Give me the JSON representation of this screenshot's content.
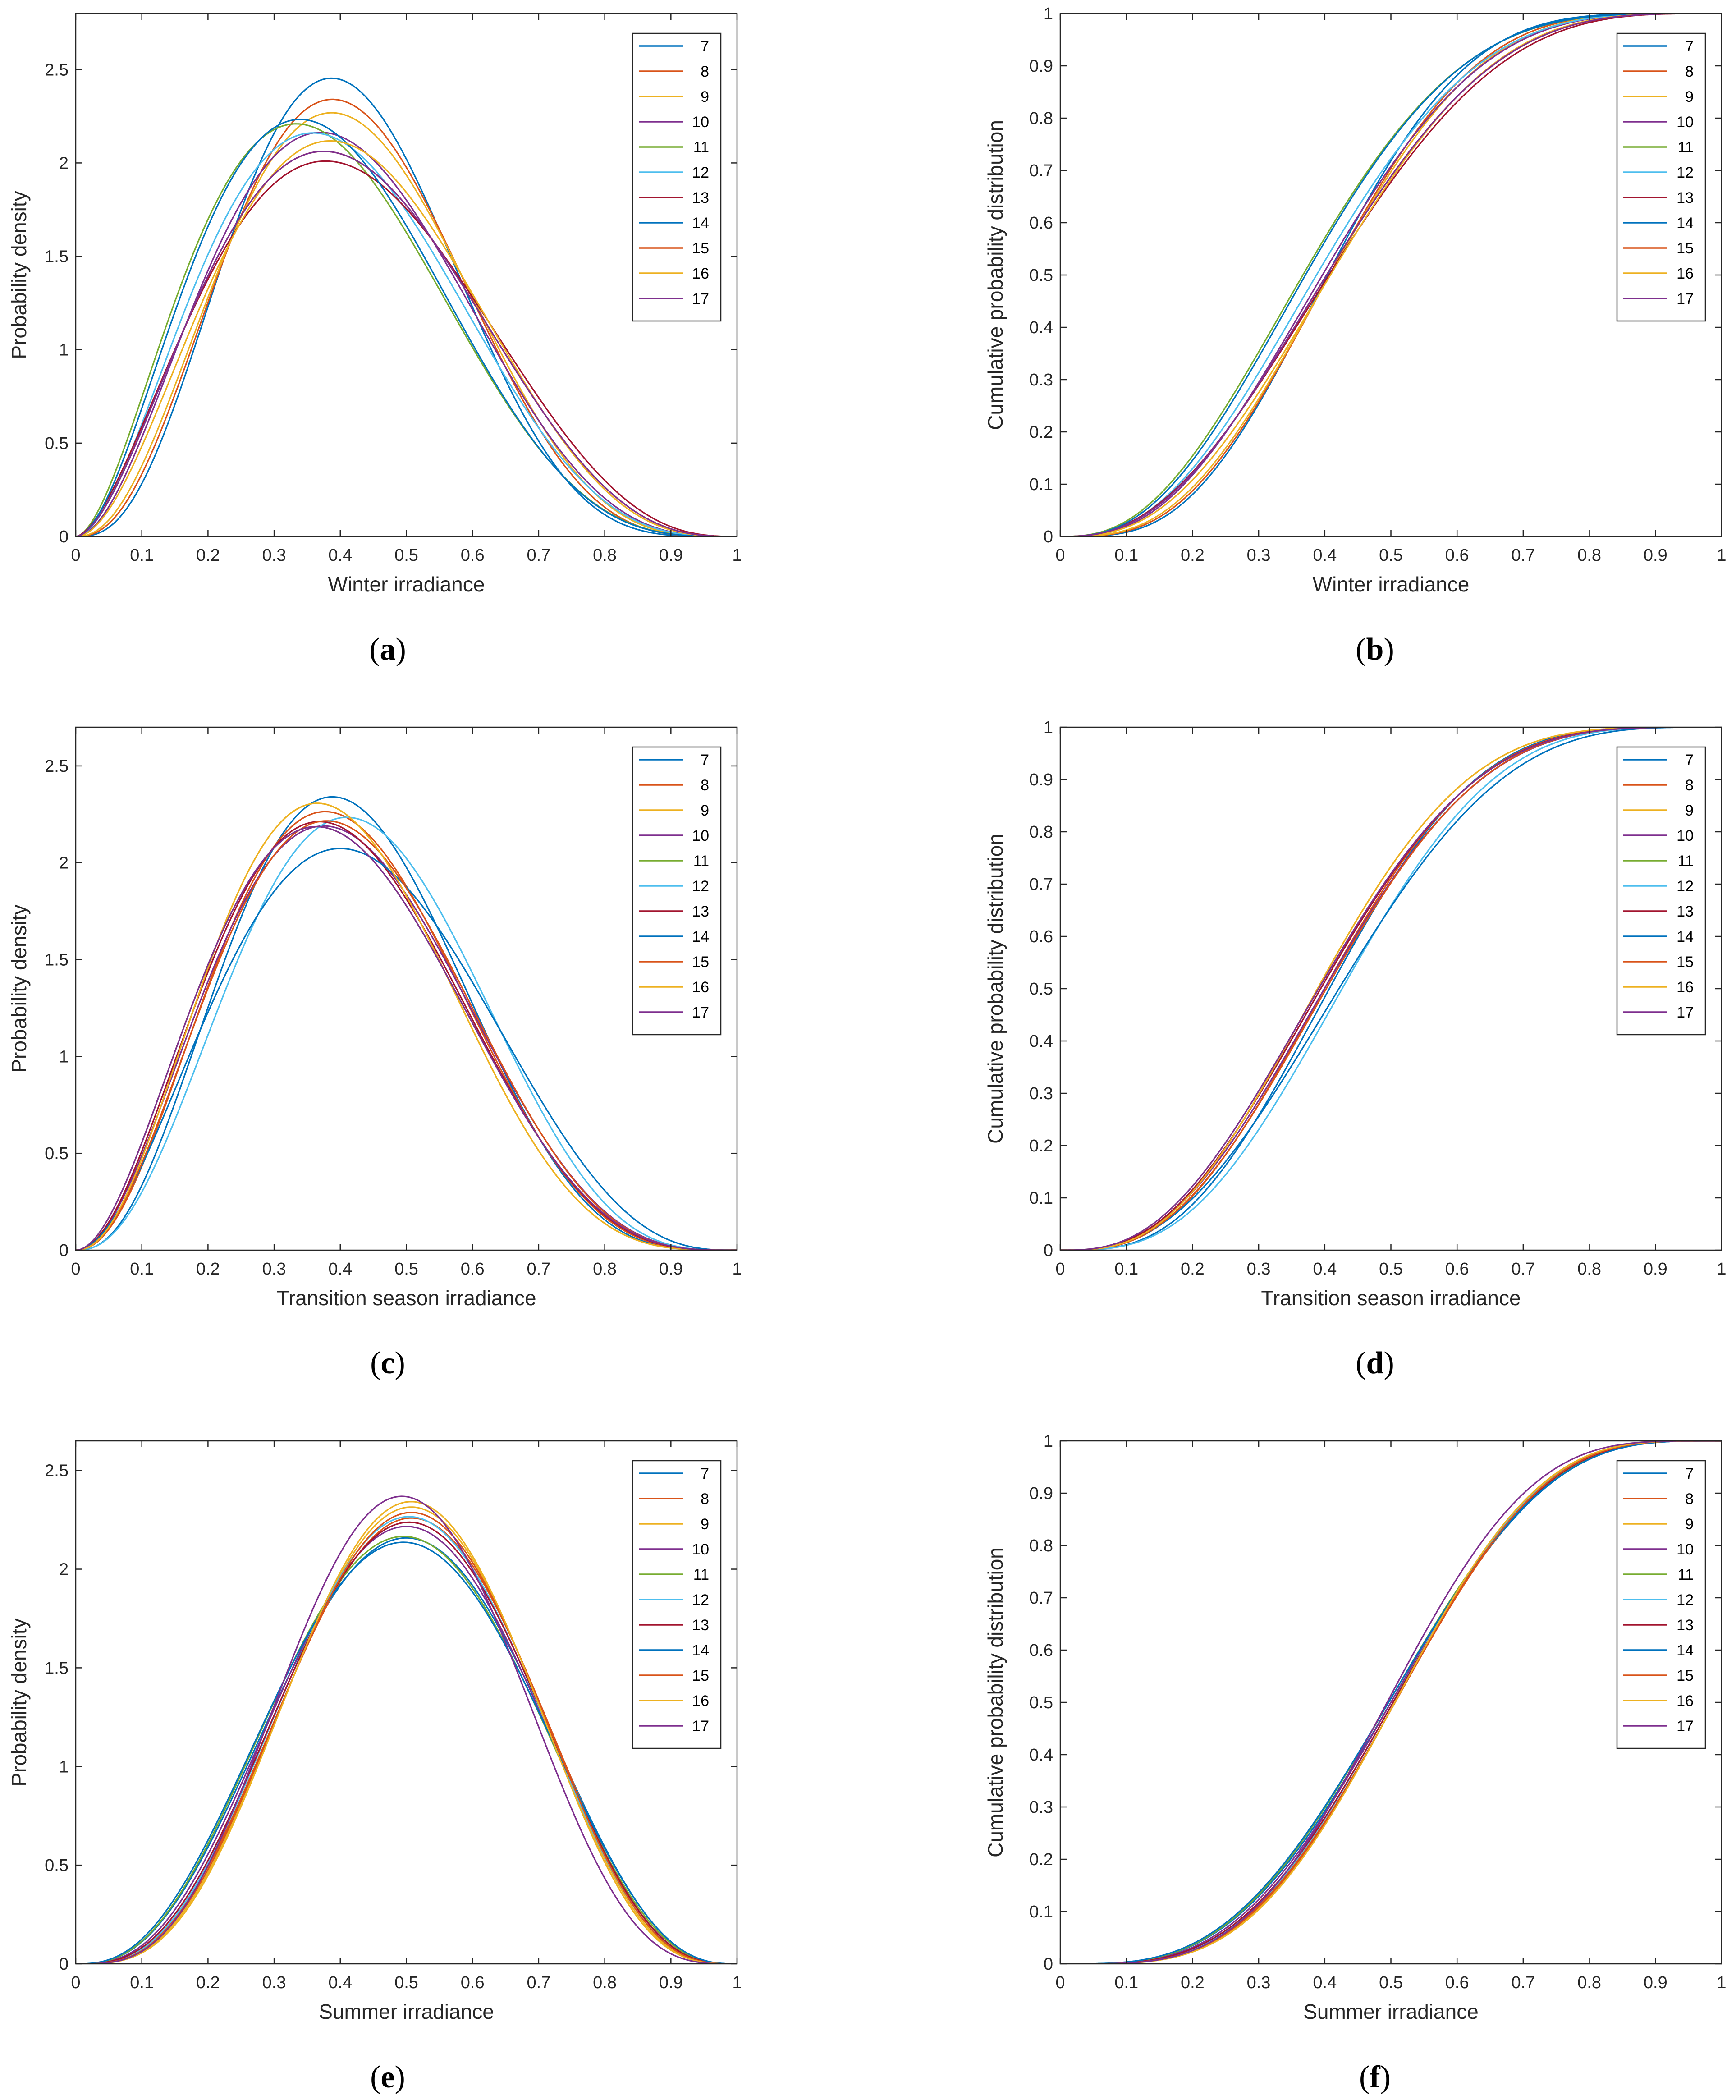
{
  "palette": [
    "#0072BD",
    "#D95319",
    "#EDB120",
    "#7E2F8E",
    "#77AC30",
    "#4DBEEE",
    "#A2142F",
    "#0072BD",
    "#D95319",
    "#EDB120",
    "#7E2F8E"
  ],
  "series_names": [
    "7",
    "8",
    "9",
    "10",
    "11",
    "12",
    "13",
    "14",
    "15",
    "16",
    "17"
  ],
  "chart_data": [
    {
      "id": "a",
      "caption": "a",
      "type": "line",
      "kind": "pdf",
      "xlabel": "Winter irradiance",
      "ylabel": "Probability density",
      "xlim": [
        0,
        1
      ],
      "ylim": [
        0,
        2.8
      ],
      "xticks": [
        "0",
        "0.1",
        "0.2",
        "0.3",
        "0.4",
        "0.5",
        "0.6",
        "0.7",
        "0.8",
        "0.9",
        "1"
      ],
      "yticks": [
        "0",
        "0.5",
        "1",
        "1.5",
        "2",
        "2.5"
      ],
      "ytick_values": [
        0,
        0.5,
        1,
        1.5,
        2,
        2.5
      ],
      "grid": false,
      "legend": "top-right",
      "series": [
        {
          "name": "7",
          "params": [
            3.9,
            5.6
          ]
        },
        {
          "name": "8",
          "params": [
            3.6,
            5.1
          ]
        },
        {
          "name": "9",
          "params": [
            3.4,
            4.8
          ]
        },
        {
          "name": "10",
          "params": [
            3.0,
            4.4
          ]
        },
        {
          "name": "11",
          "params": [
            2.8,
            4.6
          ]
        },
        {
          "name": "12",
          "params": [
            2.9,
            4.4
          ]
        },
        {
          "name": "13",
          "params": [
            2.7,
            3.8
          ]
        },
        {
          "name": "14",
          "params": [
            2.9,
            4.7
          ]
        },
        {
          "name": "15",
          "params": [
            2.8,
            4.0
          ]
        },
        {
          "name": "16",
          "params": [
            3.0,
            4.2
          ]
        },
        {
          "name": "17",
          "params": [
            2.8,
            4.0
          ]
        }
      ]
    },
    {
      "id": "b",
      "caption": "b",
      "type": "line",
      "kind": "cdf",
      "xlabel": "Winter irradiance",
      "ylabel": "Cumulative probability distribution",
      "xlim": [
        0,
        1
      ],
      "ylim": [
        0,
        1
      ],
      "xticks": [
        "0",
        "0.1",
        "0.2",
        "0.3",
        "0.4",
        "0.5",
        "0.6",
        "0.7",
        "0.8",
        "0.9",
        "1"
      ],
      "yticks": [
        "0",
        "0.1",
        "0.2",
        "0.3",
        "0.4",
        "0.5",
        "0.6",
        "0.7",
        "0.8",
        "0.9",
        "1"
      ],
      "ytick_values": [
        0,
        0.1,
        0.2,
        0.3,
        0.4,
        0.5,
        0.6,
        0.7,
        0.8,
        0.9,
        1
      ],
      "grid": false,
      "legend": "top-right",
      "series": [
        {
          "name": "7",
          "params": [
            3.9,
            5.6
          ]
        },
        {
          "name": "8",
          "params": [
            3.6,
            5.1
          ]
        },
        {
          "name": "9",
          "params": [
            3.4,
            4.8
          ]
        },
        {
          "name": "10",
          "params": [
            3.0,
            4.4
          ]
        },
        {
          "name": "11",
          "params": [
            2.8,
            4.6
          ]
        },
        {
          "name": "12",
          "params": [
            2.9,
            4.4
          ]
        },
        {
          "name": "13",
          "params": [
            2.7,
            3.8
          ]
        },
        {
          "name": "14",
          "params": [
            2.9,
            4.7
          ]
        },
        {
          "name": "15",
          "params": [
            2.8,
            4.0
          ]
        },
        {
          "name": "16",
          "params": [
            3.0,
            4.2
          ]
        },
        {
          "name": "17",
          "params": [
            2.8,
            4.0
          ]
        }
      ]
    },
    {
      "id": "c",
      "caption": "c",
      "type": "line",
      "kind": "pdf",
      "xlabel": "Transition season irradiance",
      "ylabel": "Probability density",
      "xlim": [
        0,
        1
      ],
      "ylim": [
        0,
        2.7
      ],
      "xticks": [
        "0",
        "0.1",
        "0.2",
        "0.3",
        "0.4",
        "0.5",
        "0.6",
        "0.7",
        "0.8",
        "0.9",
        "1"
      ],
      "yticks": [
        "0",
        "0.5",
        "1",
        "1.5",
        "2",
        "2.5"
      ],
      "ytick_values": [
        0,
        0.5,
        1,
        1.5,
        2,
        2.5
      ],
      "grid": false,
      "legend": "top-right",
      "series": [
        {
          "name": "7",
          "params": [
            3.6,
            5.1
          ]
        },
        {
          "name": "8",
          "params": [
            3.3,
            4.8
          ]
        },
        {
          "name": "9",
          "params": [
            3.3,
            5.0
          ]
        },
        {
          "name": "10",
          "params": [
            3.1,
            4.5
          ]
        },
        {
          "name": "11",
          "params": [
            3.0,
            4.5
          ]
        },
        {
          "name": "12",
          "params": [
            3.5,
            4.6
          ]
        },
        {
          "name": "13",
          "params": [
            3.1,
            4.6
          ]
        },
        {
          "name": "14",
          "params": [
            3.0,
            4.0
          ]
        },
        {
          "name": "15",
          "params": [
            3.2,
            4.6
          ]
        },
        {
          "name": "16",
          "params": [
            3.3,
            5.0
          ]
        },
        {
          "name": "17",
          "params": [
            3.0,
            4.5
          ]
        }
      ]
    },
    {
      "id": "d",
      "caption": "d",
      "type": "line",
      "kind": "cdf",
      "xlabel": "Transition season irradiance",
      "ylabel": "Cumulative probability distribution",
      "xlim": [
        0,
        1
      ],
      "ylim": [
        0,
        1
      ],
      "xticks": [
        "0",
        "0.1",
        "0.2",
        "0.3",
        "0.4",
        "0.5",
        "0.6",
        "0.7",
        "0.8",
        "0.9",
        "1"
      ],
      "yticks": [
        "0",
        "0.1",
        "0.2",
        "0.3",
        "0.4",
        "0.5",
        "0.6",
        "0.7",
        "0.8",
        "0.9",
        "1"
      ],
      "ytick_values": [
        0,
        0.1,
        0.2,
        0.3,
        0.4,
        0.5,
        0.6,
        0.7,
        0.8,
        0.9,
        1
      ],
      "grid": false,
      "legend": "top-right",
      "series": [
        {
          "name": "7",
          "params": [
            3.6,
            5.1
          ]
        },
        {
          "name": "8",
          "params": [
            3.3,
            4.8
          ]
        },
        {
          "name": "9",
          "params": [
            3.3,
            5.0
          ]
        },
        {
          "name": "10",
          "params": [
            3.1,
            4.5
          ]
        },
        {
          "name": "11",
          "params": [
            3.0,
            4.5
          ]
        },
        {
          "name": "12",
          "params": [
            3.5,
            4.6
          ]
        },
        {
          "name": "13",
          "params": [
            3.1,
            4.6
          ]
        },
        {
          "name": "14",
          "params": [
            3.0,
            4.0
          ]
        },
        {
          "name": "15",
          "params": [
            3.2,
            4.6
          ]
        },
        {
          "name": "16",
          "params": [
            3.3,
            5.0
          ]
        },
        {
          "name": "17",
          "params": [
            3.0,
            4.5
          ]
        }
      ]
    },
    {
      "id": "e",
      "caption": "e",
      "type": "line",
      "kind": "pdf",
      "xlabel": "Summer irradiance",
      "ylabel": "Probability density",
      "xlim": [
        0,
        1
      ],
      "ylim": [
        0,
        2.65
      ],
      "xticks": [
        "0",
        "0.1",
        "0.2",
        "0.3",
        "0.4",
        "0.5",
        "0.6",
        "0.7",
        "0.8",
        "0.9",
        "1"
      ],
      "yticks": [
        "0",
        "0.5",
        "1",
        "1.5",
        "2",
        "2.5"
      ],
      "ytick_values": [
        0,
        0.5,
        1,
        1.5,
        2,
        2.5
      ],
      "grid": false,
      "legend": "top-right",
      "series": [
        {
          "name": "7",
          "params": [
            3.9,
            3.9
          ]
        },
        {
          "name": "8",
          "params": [
            4.3,
            4.2
          ]
        },
        {
          "name": "9",
          "params": [
            4.5,
            4.4
          ]
        },
        {
          "name": "10",
          "params": [
            4.1,
            4.1
          ]
        },
        {
          "name": "11",
          "params": [
            3.9,
            3.95
          ]
        },
        {
          "name": "12",
          "params": [
            4.3,
            4.25
          ]
        },
        {
          "name": "13",
          "params": [
            4.2,
            4.15
          ]
        },
        {
          "name": "14",
          "params": [
            3.8,
            3.85
          ]
        },
        {
          "name": "15",
          "params": [
            4.4,
            4.3
          ]
        },
        {
          "name": "16",
          "params": [
            4.6,
            4.5
          ]
        },
        {
          "name": "17",
          "params": [
            4.6,
            4.7
          ]
        }
      ]
    },
    {
      "id": "f",
      "caption": "f",
      "type": "line",
      "kind": "cdf",
      "xlabel": "Summer irradiance",
      "ylabel": "Cumulative probability distribution",
      "xlim": [
        0,
        1
      ],
      "ylim": [
        0,
        1
      ],
      "xticks": [
        "0",
        "0.1",
        "0.2",
        "0.3",
        "0.4",
        "0.5",
        "0.6",
        "0.7",
        "0.8",
        "0.9",
        "1"
      ],
      "yticks": [
        "0",
        "0.1",
        "0.2",
        "0.3",
        "0.4",
        "0.5",
        "0.6",
        "0.7",
        "0.8",
        "0.9",
        "1"
      ],
      "ytick_values": [
        0,
        0.1,
        0.2,
        0.3,
        0.4,
        0.5,
        0.6,
        0.7,
        0.8,
        0.9,
        1
      ],
      "grid": false,
      "legend": "top-right",
      "series": [
        {
          "name": "7",
          "params": [
            3.9,
            3.9
          ]
        },
        {
          "name": "8",
          "params": [
            4.3,
            4.2
          ]
        },
        {
          "name": "9",
          "params": [
            4.5,
            4.4
          ]
        },
        {
          "name": "10",
          "params": [
            4.1,
            4.1
          ]
        },
        {
          "name": "11",
          "params": [
            3.9,
            3.95
          ]
        },
        {
          "name": "12",
          "params": [
            4.3,
            4.25
          ]
        },
        {
          "name": "13",
          "params": [
            4.2,
            4.15
          ]
        },
        {
          "name": "14",
          "params": [
            3.8,
            3.85
          ]
        },
        {
          "name": "15",
          "params": [
            4.4,
            4.3
          ]
        },
        {
          "name": "16",
          "params": [
            4.6,
            4.5
          ]
        },
        {
          "name": "17",
          "params": [
            4.6,
            4.7
          ]
        }
      ]
    }
  ]
}
